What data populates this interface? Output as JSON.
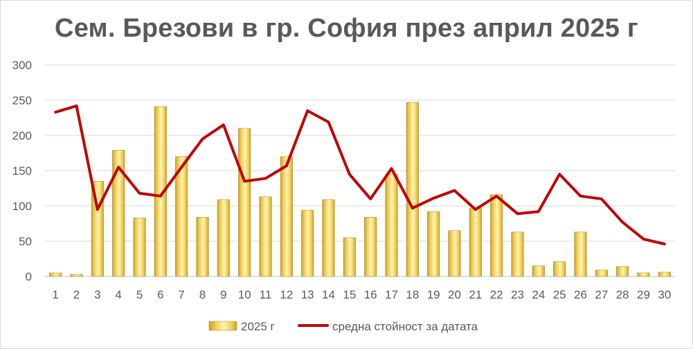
{
  "chart_data": {
    "type": "bar",
    "title": "Сем. Брезови в гр. София през април 2025 г",
    "categories": [
      "1",
      "2",
      "3",
      "4",
      "5",
      "6",
      "7",
      "8",
      "9",
      "10",
      "11",
      "12",
      "13",
      "14",
      "15",
      "16",
      "17",
      "18",
      "19",
      "20",
      "21",
      "22",
      "23",
      "24",
      "25",
      "26",
      "27",
      "28",
      "29",
      "30"
    ],
    "ylim": [
      0,
      300
    ],
    "yticks": [
      0,
      50,
      100,
      150,
      200,
      250,
      300
    ],
    "grid": true,
    "legend_position": "bottom",
    "series": [
      {
        "name": "2025 г",
        "type": "bar",
        "color": "#f5d76e",
        "values": [
          5,
          3,
          135,
          179,
          83,
          241,
          170,
          84,
          109,
          210,
          113,
          170,
          94,
          109,
          55,
          84,
          145,
          247,
          92,
          65,
          97,
          116,
          63,
          15,
          21,
          63,
          9,
          14,
          5,
          6
        ]
      },
      {
        "name": "средна стойност за датата",
        "type": "line",
        "color": "#c00000",
        "values": [
          233,
          242,
          95,
          155,
          118,
          114,
          155,
          195,
          215,
          135,
          139,
          157,
          235,
          219,
          145,
          110,
          153,
          97,
          111,
          122,
          95,
          114,
          89,
          92,
          145,
          114,
          110,
          77,
          53,
          46
        ]
      }
    ]
  }
}
